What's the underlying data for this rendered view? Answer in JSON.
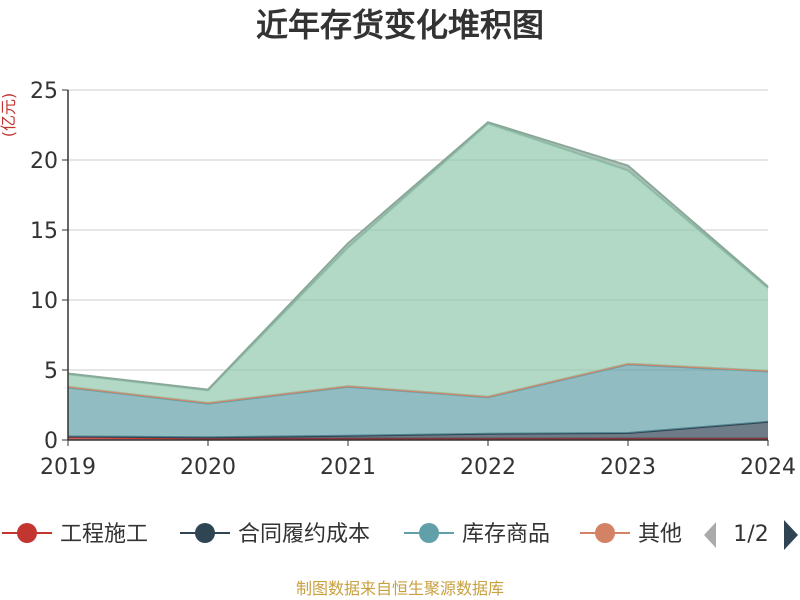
{
  "chart_data": {
    "type": "area",
    "stacked": true,
    "title": "近年存货变化堆积图",
    "y_unit": "(亿元)",
    "x": [
      "2019",
      "2020",
      "2021",
      "2022",
      "2023",
      "2024"
    ],
    "ylim": [
      0,
      25
    ],
    "yticks": [
      "0",
      "5",
      "10",
      "15",
      "20",
      "25"
    ],
    "grid": true,
    "legend_position": "bottom",
    "series": [
      {
        "name": "工程施工",
        "color": "#c23531",
        "values": [
          0.2,
          0.1,
          0.1,
          0.1,
          0.1,
          0.1
        ]
      },
      {
        "name": "合同履约成本",
        "color": "#2f4554",
        "values": [
          0.05,
          0.1,
          0.2,
          0.35,
          0.4,
          1.2
        ]
      },
      {
        "name": "库存商品",
        "color": "#61a0a8",
        "values": [
          3.5,
          2.4,
          3.5,
          2.6,
          4.9,
          3.6
        ]
      },
      {
        "name": "其他",
        "color": "#d48265",
        "values": [
          0.05,
          0.05,
          0.05,
          0.05,
          0.05,
          0.05
        ]
      },
      {
        "name": "",
        "color": "#91c7ae",
        "values": [
          0.9,
          0.9,
          9.9,
          19.5,
          13.8,
          5.9
        ]
      },
      {
        "name": "",
        "color": "#8aa89a",
        "values": [
          0.05,
          0.05,
          0.3,
          0.1,
          0.35,
          0.1
        ]
      }
    ]
  },
  "legend": {
    "page_indicator": "1/2",
    "prev_icon": "arrow-left-icon",
    "next_icon": "arrow-right-icon"
  },
  "footer": {
    "source": "制图数据来自恒生聚源数据库"
  }
}
